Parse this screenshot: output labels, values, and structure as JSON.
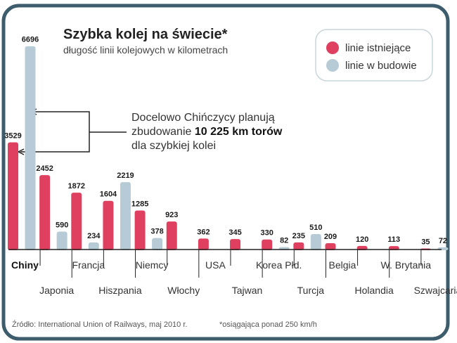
{
  "colors": {
    "existing": "#e0405f",
    "building": "#b7cbd6",
    "frame": "#3d5c6c",
    "text": "#333333"
  },
  "chart_data": {
    "type": "bar",
    "title": "Szybka kolej na świecie*",
    "subtitle": "długość linii kolejowych w kilometrach",
    "categories": [
      "Chiny",
      "Japonia",
      "Francja",
      "Hiszpania",
      "Niemcy",
      "Włochy",
      "USA",
      "Tajwan",
      "Korea Płd.",
      "Turcja",
      "Belgia",
      "Holandia",
      "W. Brytania",
      "Szwajcaria"
    ],
    "series": [
      {
        "name": "linie istniejące",
        "values": [
          3529,
          2452,
          1872,
          1604,
          1285,
          923,
          362,
          345,
          330,
          235,
          209,
          120,
          113,
          35
        ]
      },
      {
        "name": "linie w budowie",
        "values": [
          6696,
          590,
          234,
          2219,
          378,
          null,
          null,
          null,
          82,
          510,
          null,
          null,
          null,
          72
        ]
      }
    ],
    "ylim": [
      0,
      7000
    ],
    "grid": false,
    "legend": "top-right",
    "annotation": {
      "line1": "Docelowo Chińczycy planują",
      "line2_prefix": "zbudowanie ",
      "line2_bold": "10 225 km torów",
      "line3": "dla szybkiej kolei"
    },
    "source": "Źródło: International Union of Railways, maj 2010 r.",
    "footnote": "*osiągająca ponad 250 km/h"
  }
}
